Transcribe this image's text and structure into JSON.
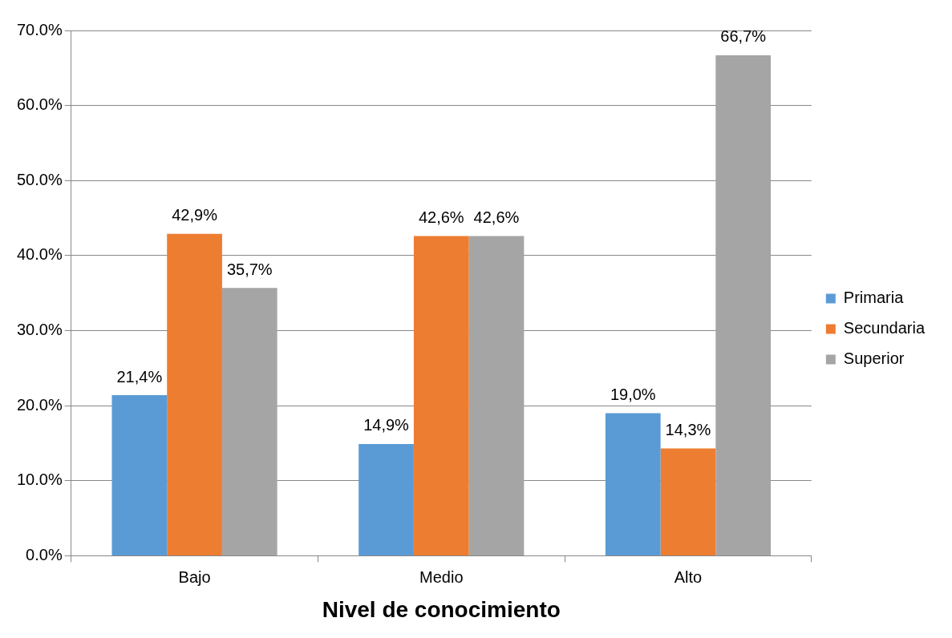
{
  "chart_data": {
    "type": "bar",
    "xlabel": "Nivel de conocimiento",
    "categories": [
      "Bajo",
      "Medio",
      "Alto"
    ],
    "series": [
      {
        "name": "Primaria",
        "color": "#5b9bd5",
        "values": [
          21.4,
          14.9,
          19.0
        ],
        "value_labels": [
          "21,4%",
          "14,9%",
          "19,0%"
        ]
      },
      {
        "name": "Secundaria",
        "color": "#ed7d31",
        "values": [
          42.9,
          42.6,
          14.3
        ],
        "value_labels": [
          "42,9%",
          "42,6%",
          "14,3%"
        ]
      },
      {
        "name": "Superior",
        "color": "#a5a5a5",
        "values": [
          35.7,
          42.6,
          66.7
        ],
        "value_labels": [
          "35,7%",
          "42,6%",
          "66,7%"
        ]
      }
    ],
    "ylim": [
      0,
      70
    ],
    "yticks": [
      {
        "value": 0,
        "label": "0.0%"
      },
      {
        "value": 10,
        "label": "10.0%"
      },
      {
        "value": 20,
        "label": "20.0%"
      },
      {
        "value": 30,
        "label": "30.0%"
      },
      {
        "value": 40,
        "label": "40.0%"
      },
      {
        "value": 50,
        "label": "50.0%"
      },
      {
        "value": 60,
        "label": "60.0%"
      },
      {
        "value": 70,
        "label": "70.0%"
      }
    ],
    "grid": "y",
    "legend": "right"
  }
}
